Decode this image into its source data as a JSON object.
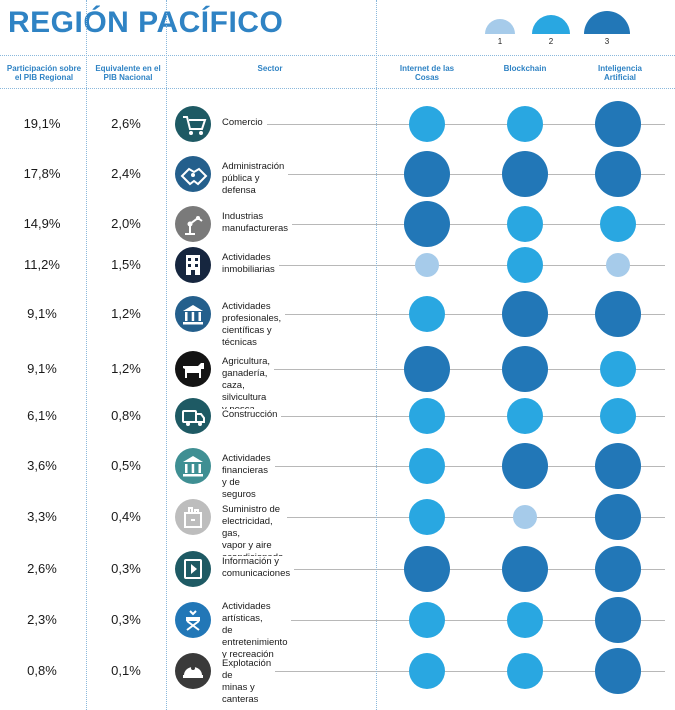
{
  "title": "REGIÓN PACÍFICO",
  "legend": {
    "labels": [
      "1",
      "2",
      "3"
    ],
    "colors": [
      "#a6cbea",
      "#29a7e1",
      "#2277b7"
    ]
  },
  "headers": {
    "participacion": "Participación sobre el PIB Regional",
    "equivalente": "Equivalente en el PIB Nacional",
    "sector": "Sector",
    "iot": "Internet de las Cosas",
    "blockchain": "Blockchain",
    "ia": "Inteligencia Artificial"
  },
  "rows": [
    {
      "participacion": "19,1%",
      "equivalente": "2,6%",
      "sector_lines": [
        "Comercio"
      ],
      "icon": "shopping-cart-icon",
      "icon_color": "#1e5a64",
      "iot": 2,
      "blockchain": 2,
      "ia": 3
    },
    {
      "participacion": "17,8%",
      "equivalente": "2,4%",
      "sector_lines": [
        "Administración",
        "pública y defensa"
      ],
      "icon": "handshake-icon",
      "icon_color": "#245f8c",
      "iot": 3,
      "blockchain": 3,
      "ia": 3
    },
    {
      "participacion": "14,9%",
      "equivalente": "2,0%",
      "sector_lines": [
        "Industrias",
        "manufactureras"
      ],
      "icon": "robot-arm-icon",
      "icon_color": "#7a7a7a",
      "iot": 3,
      "blockchain": 2,
      "ia": 2
    },
    {
      "participacion": "11,2%",
      "equivalente": "1,5%",
      "sector_lines": [
        "Actividades",
        "inmobiliarias"
      ],
      "icon": "building-icon",
      "icon_color": "#16263f",
      "iot": 1,
      "blockchain": 2,
      "ia": 1
    },
    {
      "participacion": "9,1%",
      "equivalente": "1,2%",
      "sector_lines": [
        "Actividades profesionales,",
        "científicas y técnicas"
      ],
      "icon": "institution-icon",
      "icon_color": "#245f8c",
      "iot": 2,
      "blockchain": 3,
      "ia": 3
    },
    {
      "participacion": "9,1%",
      "equivalente": "1,2%",
      "sector_lines": [
        "Agricultura, ganadería,",
        "caza, silvicultura y pesca"
      ],
      "icon": "cow-icon",
      "icon_color": "#141414",
      "iot": 3,
      "blockchain": 3,
      "ia": 2
    },
    {
      "participacion": "6,1%",
      "equivalente": "0,8%",
      "sector_lines": [
        "Construcción"
      ],
      "icon": "truck-icon",
      "icon_color": "#1e5a64",
      "iot": 2,
      "blockchain": 2,
      "ia": 2
    },
    {
      "participacion": "3,6%",
      "equivalente": "0,5%",
      "sector_lines": [
        "Actividades financieras",
        "y de seguros"
      ],
      "icon": "bank-icon",
      "icon_color": "#3f8f93",
      "iot": 2,
      "blockchain": 3,
      "ia": 3
    },
    {
      "participacion": "3,3%",
      "equivalente": "0,4%",
      "sector_lines": [
        "Suministro de electricidad, gas,",
        "vapor y aire acondicionado"
      ],
      "icon": "power-plant-icon",
      "icon_color": "#bdbdbd",
      "iot": 2,
      "blockchain": 1,
      "ia": 3
    },
    {
      "participacion": "2,6%",
      "equivalente": "0,3%",
      "sector_lines": [
        "Información y",
        "comunicaciones"
      ],
      "icon": "media-play-icon",
      "icon_color": "#1e5a64",
      "iot": 3,
      "blockchain": 3,
      "ia": 3
    },
    {
      "participacion": "2,3%",
      "equivalente": "0,3%",
      "sector_lines": [
        "Actividades artísticas,",
        "de entretenimiento",
        "y recreación"
      ],
      "icon": "director-chair-icon",
      "icon_color": "#2277b7",
      "iot": 2,
      "blockchain": 2,
      "ia": 3
    },
    {
      "participacion": "0,8%",
      "equivalente": "0,1%",
      "sector_lines": [
        "Explotación de",
        "minas y canteras"
      ],
      "icon": "miner-helmet-icon",
      "icon_color": "#3a3a3a",
      "iot": 2,
      "blockchain": 2,
      "ia": 3
    }
  ]
}
